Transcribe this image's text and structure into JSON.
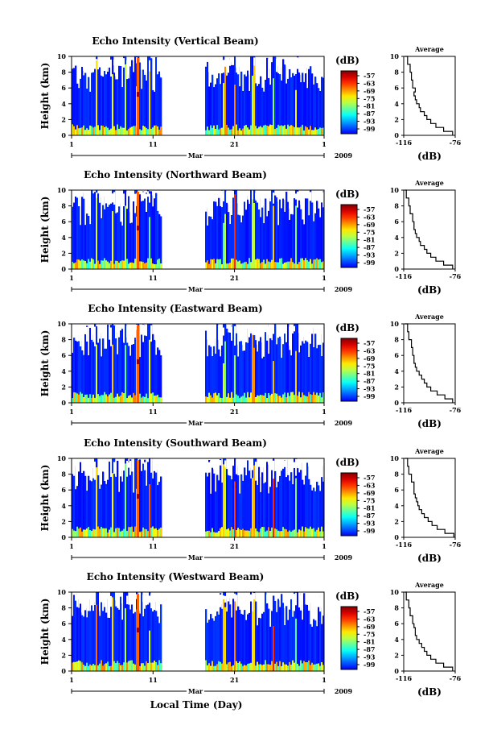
{
  "figure": {
    "xlabel": "Local Time (Day)",
    "month_label": "Mar",
    "year_label": "2009",
    "x_tick_labels": [
      "1",
      "11",
      "21",
      "1"
    ],
    "colorbar_unit": "(dB)",
    "colorbar_ticks": [
      "-57",
      "-63",
      "-69",
      "-75",
      "-81",
      "-87",
      "-93",
      "-99"
    ],
    "average_title": "Average",
    "average_xlabel": "(dB)",
    "average_x_ticks": [
      "-116",
      "-76"
    ]
  },
  "chart_data": [
    {
      "type": "heatmap",
      "title": "Echo Intensity (Vertical Beam)",
      "ylabel": "Height (km)",
      "xlabel": "Local Time (Day)",
      "x_range_days": [
        1,
        32
      ],
      "y_range_km": [
        0,
        10
      ],
      "y_ticks": [
        "0",
        "2",
        "4",
        "6",
        "8",
        "10"
      ],
      "colorbar": {
        "unit": "(dB)",
        "range": [
          -99,
          -57
        ],
        "ticks": [
          -57,
          -63,
          -69,
          -75,
          -81,
          -87,
          -93,
          -99
        ]
      },
      "data_gap_days": [
        11.2,
        17.6
      ],
      "average_profile": {
        "title": "Average",
        "xlabel": "(dB)",
        "x_range": [
          -116,
          -76
        ],
        "height_km": [
          0,
          0.5,
          1,
          1.5,
          2,
          2.5,
          3,
          3.5,
          4,
          4.5,
          5,
          5.5,
          6,
          7,
          8,
          9,
          10
        ],
        "intensity_db": [
          -78,
          -85,
          -91,
          -95,
          -98,
          -100,
          -103,
          -104,
          -106,
          -107,
          -108,
          -107,
          -109,
          -110,
          -111,
          -113,
          -115
        ]
      }
    },
    {
      "type": "heatmap",
      "title": "Echo Intensity (Northward Beam)",
      "ylabel": "Height (km)",
      "xlabel": "Local Time (Day)",
      "x_range_days": [
        1,
        32
      ],
      "y_range_km": [
        0,
        10
      ],
      "y_ticks": [
        "0",
        "2",
        "4",
        "6",
        "8",
        "10"
      ],
      "colorbar": {
        "unit": "(dB)",
        "range": [
          -99,
          -57
        ],
        "ticks": [
          -57,
          -63,
          -69,
          -75,
          -81,
          -87,
          -93,
          -99
        ]
      },
      "data_gap_days": [
        11.2,
        17.6
      ],
      "average_profile": {
        "title": "Average",
        "xlabel": "(dB)",
        "x_range": [
          -116,
          -76
        ],
        "height_km": [
          0,
          0.5,
          1,
          1.5,
          2,
          2.5,
          3,
          3.5,
          4,
          4.5,
          5,
          5.5,
          6,
          7,
          8,
          9,
          10
        ],
        "intensity_db": [
          -78,
          -85,
          -91,
          -95,
          -98,
          -100,
          -103,
          -104,
          -106,
          -107,
          -108,
          -108,
          -109,
          -111,
          -112,
          -114,
          -115
        ]
      }
    },
    {
      "type": "heatmap",
      "title": "Echo Intensity (Eastward Beam)",
      "ylabel": "Height (km)",
      "xlabel": "Local Time (Day)",
      "x_range_days": [
        1,
        32
      ],
      "y_range_km": [
        0,
        10
      ],
      "y_ticks": [
        "0",
        "2",
        "4",
        "6",
        "8",
        "10"
      ],
      "colorbar": {
        "unit": "(dB)",
        "range": [
          -99,
          -57
        ],
        "ticks": [
          -57,
          -63,
          -69,
          -75,
          -81,
          -87,
          -93,
          -99
        ]
      },
      "data_gap_days": [
        11.2,
        17.6
      ],
      "average_profile": {
        "title": "Average",
        "xlabel": "(dB)",
        "x_range": [
          -116,
          -76
        ],
        "height_km": [
          0,
          0.5,
          1,
          1.5,
          2,
          2.5,
          3,
          3.5,
          4,
          4.5,
          5,
          5.5,
          6,
          7,
          8,
          9,
          10
        ],
        "intensity_db": [
          -78,
          -84,
          -90,
          -95,
          -98,
          -100,
          -102,
          -104,
          -106,
          -107,
          -108,
          -108,
          -109,
          -110,
          -112,
          -113,
          -115
        ]
      }
    },
    {
      "type": "heatmap",
      "title": "Echo Intensity (Southward Beam)",
      "ylabel": "Height (km)",
      "xlabel": "Local Time (Day)",
      "x_range_days": [
        1,
        32
      ],
      "y_range_km": [
        0,
        10
      ],
      "y_ticks": [
        "0",
        "2",
        "4",
        "6",
        "8",
        "10"
      ],
      "colorbar": {
        "unit": "(dB)",
        "range": [
          -99,
          -57
        ],
        "ticks": [
          -57,
          -63,
          -69,
          -75,
          -81,
          -87,
          -93,
          -99
        ]
      },
      "data_gap_days": [
        11.2,
        17.6
      ],
      "average_profile": {
        "title": "Average",
        "xlabel": "(dB)",
        "x_range": [
          -116,
          -76
        ],
        "height_km": [
          0,
          0.5,
          1,
          1.5,
          2,
          2.5,
          3,
          3.5,
          4,
          4.5,
          5,
          5.5,
          6,
          7,
          8,
          9,
          10
        ],
        "intensity_db": [
          -77,
          -84,
          -90,
          -94,
          -97,
          -100,
          -102,
          -104,
          -105,
          -106,
          -107,
          -108,
          -108,
          -110,
          -112,
          -113,
          -115
        ]
      }
    },
    {
      "type": "heatmap",
      "title": "Echo Intensity (Westward Beam)",
      "ylabel": "Height (km)",
      "xlabel": "Local Time (Day)",
      "x_range_days": [
        1,
        32
      ],
      "y_range_km": [
        0,
        10
      ],
      "y_ticks": [
        "0",
        "2",
        "4",
        "6",
        "8",
        "10"
      ],
      "colorbar": {
        "unit": "(dB)",
        "range": [
          -99,
          -57
        ],
        "ticks": [
          -57,
          -63,
          -69,
          -75,
          -81,
          -87,
          -93,
          -99
        ]
      },
      "data_gap_days": [
        11.2,
        17.6
      ],
      "average_profile": {
        "title": "Average",
        "xlabel": "(dB)",
        "x_range": [
          -116,
          -76
        ],
        "height_km": [
          0,
          0.5,
          1,
          1.5,
          2,
          2.5,
          3,
          3.5,
          4,
          4.5,
          5,
          5.5,
          6,
          7,
          8,
          9,
          10
        ],
        "intensity_db": [
          -78,
          -85,
          -91,
          -95,
          -98,
          -100,
          -102,
          -104,
          -106,
          -107,
          -107,
          -108,
          -109,
          -111,
          -112,
          -114,
          -115
        ]
      }
    }
  ]
}
